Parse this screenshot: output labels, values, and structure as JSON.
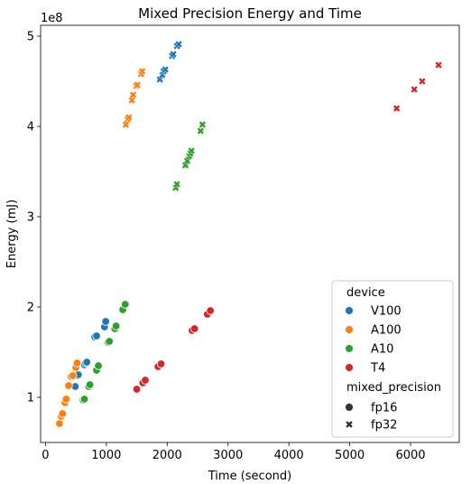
{
  "chart_data": {
    "type": "scatter",
    "title": "Mixed Precision Energy and Time",
    "xlabel": "Time (second)",
    "ylabel": "Energy (mJ)",
    "y_offset_label": "1e8",
    "xlim": [
      -80,
      6800
    ],
    "ylim": [
      0.5,
      5.12
    ],
    "x_ticks": [
      0,
      1000,
      2000,
      3000,
      4000,
      5000,
      6000
    ],
    "x_tick_labels": [
      "0",
      "1000",
      "2000",
      "3000",
      "4000",
      "5000",
      "6000"
    ],
    "y_ticks": [
      1,
      2,
      3,
      4,
      5
    ],
    "y_tick_labels": [
      "1",
      "2",
      "3",
      "4",
      "5"
    ],
    "grid": false,
    "legend": {
      "placement": "lower-right",
      "hue_title": "device",
      "style_title": "mixed_precision",
      "hue_entries": [
        {
          "label": "V100",
          "color": "#1f77b4"
        },
        {
          "label": "A100",
          "color": "#ff7f0e"
        },
        {
          "label": "A10",
          "color": "#2ca02c"
        },
        {
          "label": "T4",
          "color": "#d62728"
        }
      ],
      "style_entries": [
        {
          "label": "fp16",
          "marker": "circle"
        },
        {
          "label": "fp32",
          "marker": "x"
        }
      ]
    },
    "series": [
      {
        "device": "V100",
        "precision": "fp16",
        "color": "#1f77b4",
        "marker": "circle",
        "points": [
          [
            490,
            1.12
          ],
          [
            520,
            1.24
          ],
          [
            540,
            1.25
          ],
          [
            640,
            1.36
          ],
          [
            660,
            1.38
          ],
          [
            680,
            1.39
          ],
          [
            810,
            1.67
          ],
          [
            840,
            1.68
          ],
          [
            970,
            1.78
          ],
          [
            990,
            1.84
          ]
        ]
      },
      {
        "device": "V100",
        "precision": "fp32",
        "color": "#1f77b4",
        "marker": "x",
        "points": [
          [
            1880,
            4.52
          ],
          [
            1920,
            4.57
          ],
          [
            1940,
            4.61
          ],
          [
            1970,
            4.63
          ],
          [
            2080,
            4.78
          ],
          [
            2100,
            4.8
          ],
          [
            2160,
            4.89
          ],
          [
            2190,
            4.91
          ]
        ]
      },
      {
        "device": "A100",
        "precision": "fp16",
        "color": "#ff7f0e",
        "marker": "circle",
        "points": [
          [
            230,
            0.71
          ],
          [
            260,
            0.79
          ],
          [
            280,
            0.82
          ],
          [
            320,
            0.94
          ],
          [
            340,
            0.98
          ],
          [
            380,
            1.13
          ],
          [
            420,
            1.23
          ],
          [
            450,
            1.24
          ],
          [
            500,
            1.33
          ],
          [
            520,
            1.38
          ]
        ]
      },
      {
        "device": "A100",
        "precision": "fp32",
        "color": "#ff7f0e",
        "marker": "x",
        "points": [
          [
            1320,
            4.02
          ],
          [
            1350,
            4.08
          ],
          [
            1370,
            4.1
          ],
          [
            1420,
            4.29
          ],
          [
            1440,
            4.35
          ],
          [
            1490,
            4.45
          ],
          [
            1510,
            4.46
          ],
          [
            1570,
            4.58
          ],
          [
            1590,
            4.61
          ]
        ]
      },
      {
        "device": "A10",
        "precision": "fp16",
        "color": "#2ca02c",
        "marker": "circle",
        "points": [
          [
            620,
            0.97
          ],
          [
            640,
            0.98
          ],
          [
            710,
            1.12
          ],
          [
            730,
            1.14
          ],
          [
            840,
            1.3
          ],
          [
            870,
            1.35
          ],
          [
            1030,
            1.61
          ],
          [
            1050,
            1.62
          ],
          [
            1140,
            1.76
          ],
          [
            1160,
            1.79
          ],
          [
            1270,
            1.97
          ],
          [
            1310,
            2.03
          ]
        ]
      },
      {
        "device": "A10",
        "precision": "fp32",
        "color": "#2ca02c",
        "marker": "x",
        "points": [
          [
            2140,
            3.32
          ],
          [
            2160,
            3.36
          ],
          [
            2300,
            3.57
          ],
          [
            2330,
            3.62
          ],
          [
            2360,
            3.67
          ],
          [
            2380,
            3.7
          ],
          [
            2400,
            3.73
          ],
          [
            2550,
            3.95
          ],
          [
            2580,
            4.02
          ]
        ]
      },
      {
        "device": "T4",
        "precision": "fp16",
        "color": "#d62728",
        "marker": "circle",
        "points": [
          [
            1500,
            1.09
          ],
          [
            1600,
            1.16
          ],
          [
            1640,
            1.19
          ],
          [
            1850,
            1.34
          ],
          [
            1900,
            1.37
          ],
          [
            2410,
            1.74
          ],
          [
            2450,
            1.76
          ],
          [
            2660,
            1.92
          ],
          [
            2710,
            1.96
          ]
        ]
      },
      {
        "device": "T4",
        "precision": "fp32",
        "color": "#d62728",
        "marker": "x",
        "points": [
          [
            5770,
            4.2
          ],
          [
            6060,
            4.41
          ],
          [
            6190,
            4.5
          ],
          [
            6460,
            4.68
          ]
        ]
      }
    ]
  }
}
